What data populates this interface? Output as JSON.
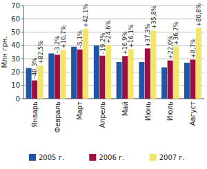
{
  "chart_data": {
    "type": "bar",
    "y_label": "Млн грн.",
    "categories": [
      "Январь",
      "Февраль",
      "Март",
      "Апрель",
      "Май",
      "Июнь",
      "Июль",
      "Август"
    ],
    "series": [
      {
        "name": "2005 г.",
        "color": "#1f56a6",
        "values": [
          23,
          34,
          39,
          40,
          27.5,
          27.5,
          23.5,
          27
        ]
      },
      {
        "name": "2006 г.",
        "color": "#9e0f3e",
        "values": [
          13.7,
          33,
          37,
          32.3,
          32,
          37.7,
          28.7,
          29.3
        ],
        "change": [
          -40.3,
          -3.2,
          -5.1,
          -19.2,
          16.9,
          37.3,
          22.0,
          8.7
        ],
        "change_labels": [
          "–40,3%",
          "–3,2%",
          "–5,1%",
          "–19,2%",
          "+16,9%",
          "+37,3%",
          "+22,0%",
          "+8,7%"
        ]
      },
      {
        "name": "2007 г.",
        "color": "#f3e56a",
        "values": [
          25,
          36.5,
          52.5,
          40.3,
          37.2,
          51.2,
          39.2,
          53
        ],
        "change": [
          82.5,
          10.7,
          42.1,
          24.6,
          16.1,
          35.8,
          36.7,
          80.8
        ],
        "change_labels": [
          "+82,5%",
          "+10,7%",
          "+42,1%",
          "+24,6%",
          "+16,1%",
          "+35,8%",
          "+36,7%",
          "+80,8%"
        ]
      }
    ],
    "ylim": [
      0,
      70
    ],
    "yticks": [
      0,
      10,
      20,
      30,
      40,
      50,
      60,
      70
    ],
    "grid": true,
    "legend": "bottom"
  }
}
